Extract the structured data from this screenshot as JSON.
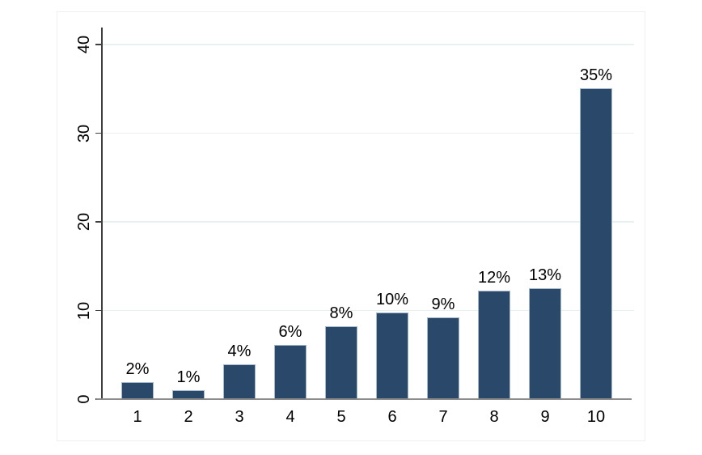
{
  "chart_data": {
    "type": "bar",
    "title": "",
    "xlabel": "",
    "ylabel": "",
    "categories": [
      "1",
      "2",
      "3",
      "4",
      "5",
      "6",
      "7",
      "8",
      "9",
      "10"
    ],
    "values": [
      1.9,
      1.0,
      3.9,
      6.1,
      8.2,
      9.8,
      9.2,
      12.2,
      12.5,
      35.1
    ],
    "bar_labels": [
      "2%",
      "1%",
      "4%",
      "6%",
      "8%",
      "10%",
      "9%",
      "12%",
      "13%",
      "35%"
    ],
    "y_ticks": [
      0,
      10,
      20,
      30,
      40
    ],
    "ylim": [
      0,
      42
    ],
    "grid": true,
    "legend": "none",
    "series_name": "percent"
  },
  "colors": {
    "bar_fill": "#29486a",
    "bar_outline": "#a4b8ca",
    "grid": "#e9f1f0",
    "y_axis": "#3f3f3f",
    "x_axis_baseline": "#8c8c8c",
    "tick": "#3f3f3f",
    "text": "#000000",
    "canvas_border": "#efefef",
    "background": "#ffffff"
  }
}
